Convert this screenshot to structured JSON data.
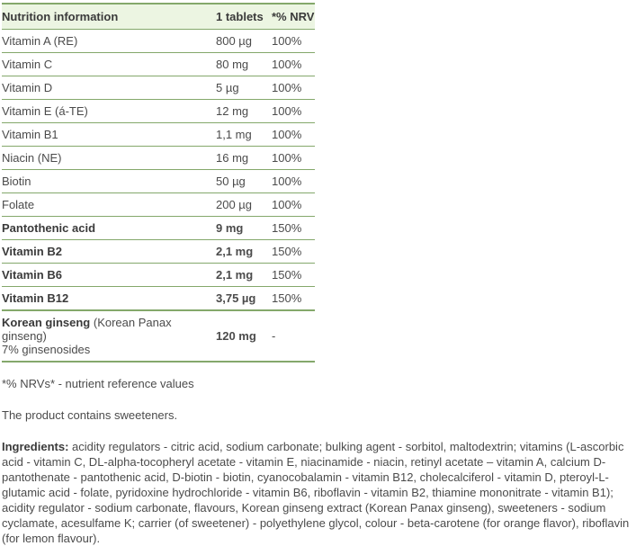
{
  "colors": {
    "border_green": "#84a86b",
    "header_bg": "#ecf5e2",
    "text": "#4b4b4b",
    "text_bold": "#3a3a3a"
  },
  "table": {
    "headers": [
      "Nutrition information",
      "1 tablets",
      "*% NRV"
    ],
    "rows": [
      {
        "name": "Vitamin A (RE)",
        "amount": "800 µg",
        "nrv": "100%",
        "bold": false
      },
      {
        "name": "Vitamin C",
        "amount": "80 mg",
        "nrv": "100%",
        "bold": false
      },
      {
        "name": "Vitamin D",
        "amount": "5 µg",
        "nrv": "100%",
        "bold": false
      },
      {
        "name": "Vitamin E (á-TE)",
        "amount": "12 mg",
        "nrv": "100%",
        "bold": false
      },
      {
        "name": "Vitamin B1",
        "amount": "1,1 mg",
        "nrv": "100%",
        "bold": false
      },
      {
        "name": "Niacin (NE)",
        "amount": "16 mg",
        "nrv": "100%",
        "bold": false
      },
      {
        "name": "Biotin",
        "amount": "50 µg",
        "nrv": "100%",
        "bold": false
      },
      {
        "name": "Folate",
        "amount": "200 µg",
        "nrv": "100%",
        "bold": false
      },
      {
        "name": "Pantothenic acid",
        "amount": "9 mg",
        "nrv": "150%",
        "bold": true
      },
      {
        "name": "Vitamin B2",
        "amount": "2,1 mg",
        "nrv": "150%",
        "bold": true
      },
      {
        "name": "Vitamin B6",
        "amount": "2,1 mg",
        "nrv": "150%",
        "bold": true
      },
      {
        "name": "Vitamin B12",
        "amount": "3,75 µg",
        "nrv": "150%",
        "bold": true
      },
      {
        "name": "Korean ginseng",
        "name_note": " (Korean Panax ginseng)",
        "name_line2": "7% ginsenosides",
        "amount": "120 mg",
        "nrv": "-",
        "bold": true,
        "divider_before": true
      }
    ]
  },
  "footnotes": {
    "nrv_note": "*% NRVs* - nutrient reference values",
    "sweeteners_note": "The product contains sweeteners.",
    "ingredients_label": "Ingredients:",
    "ingredients_text": " acidity regulators - citric acid, sodium carbonate; bulking agent - sorbitol, maltodextrin; vitamins (L-ascorbic acid - vitamin C, DL-alpha-tocopheryl acetate - vitamin E, niacinamide - niacin, retinyl acetate – vitamin A, calcium D-pantothenate - pantothenic acid, D-biotin - biotin, cyanocobalamin - vitamin B12, cholecalciferol - vitamin D, pteroyl-L-glutamic acid - folate, pyridoxine hydrochloride - vitamin B6, riboflavin - vitamin B2, thiamine mononitrate - vitamin B1); acidity regulator - sodium carbonate, flavours, Korean ginseng extract (Korean Panax ginseng), sweeteners - sodium cyclamate, acesulfame K; carrier (of sweetener) - polyethylene glycol, colour - beta-carotene (for orange flavor), riboflavin (for lemon flavour)."
  }
}
